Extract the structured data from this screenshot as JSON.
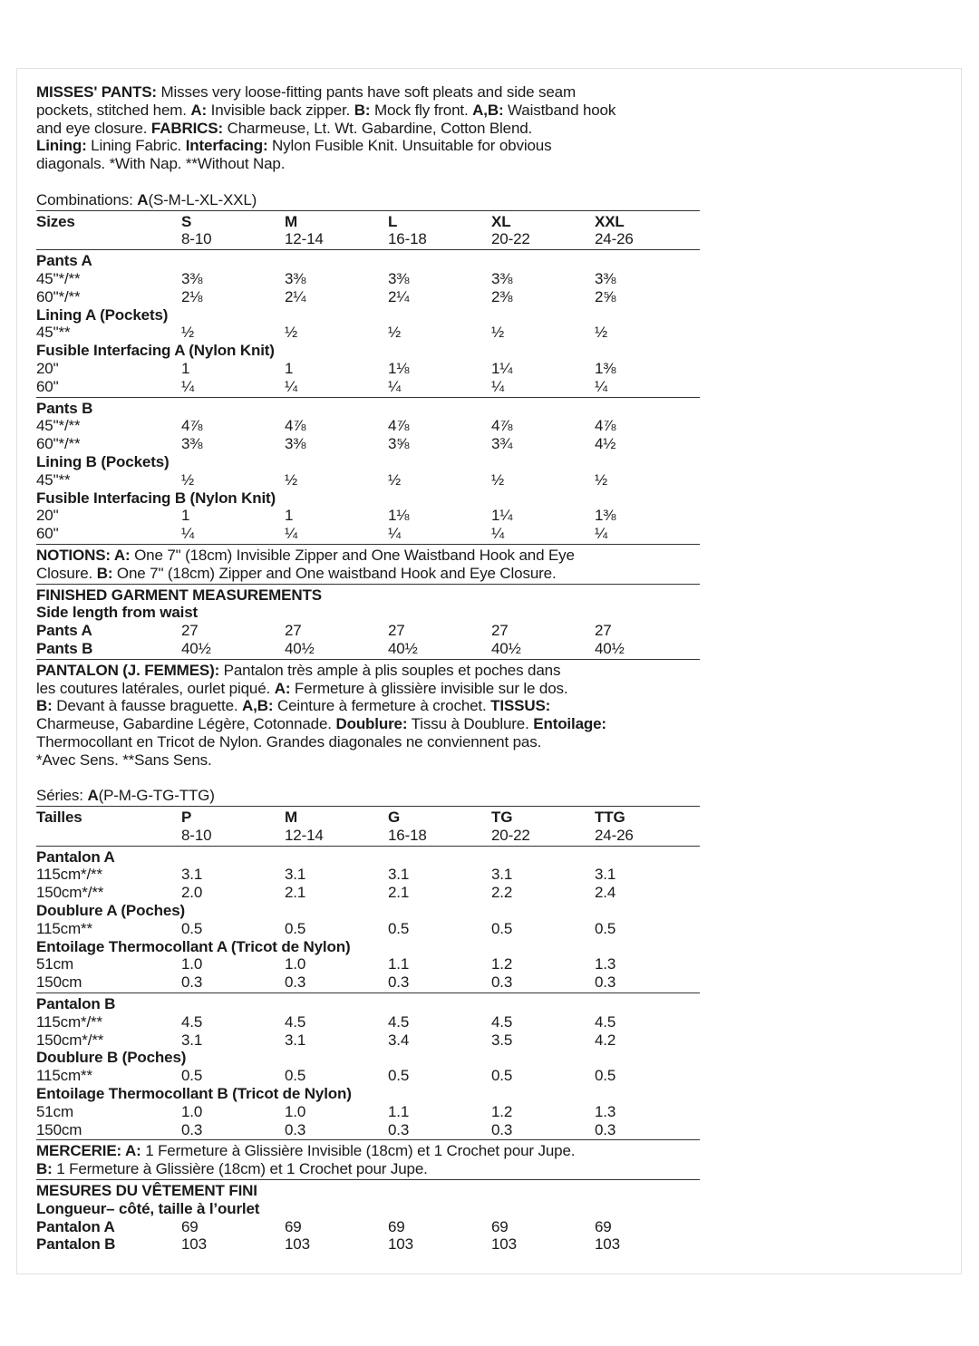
{
  "columns_en": [
    "S",
    "M",
    "L",
    "XL",
    "XXL"
  ],
  "blocks": [
    {
      "t": "para",
      "lines": [
        [
          [
            "MISSES' PANTS:",
            1
          ],
          [
            " Misses very loose-fitting pants have soft pleats and side seam",
            0
          ]
        ],
        [
          [
            "pockets, stitched hem. ",
            0
          ],
          [
            "A:",
            1
          ],
          [
            " Invisible back zipper. ",
            0
          ],
          [
            "B:",
            1
          ],
          [
            " Mock fly front. ",
            0
          ],
          [
            "A,B:",
            1
          ],
          [
            " Waistband hook",
            0
          ]
        ],
        [
          [
            "and eye closure. ",
            0
          ],
          [
            "FABRICS:",
            1
          ],
          [
            " Charmeuse, Lt. Wt. Gabardine, Cotton Blend.",
            0
          ]
        ],
        [
          [
            "Lining:",
            1
          ],
          [
            " Lining Fabric. ",
            0
          ],
          [
            "Interfacing:",
            1
          ],
          [
            " Nylon Fusible Knit. Unsuitable for obvious",
            0
          ]
        ],
        [
          [
            "diagonals. *With Nap. **Without Nap.",
            0
          ]
        ]
      ]
    },
    {
      "t": "blank"
    },
    {
      "t": "para",
      "lines": [
        [
          [
            "Combinations: ",
            0
          ],
          [
            "A",
            1
          ],
          [
            "(S-M-L-XL-XXL)",
            0
          ]
        ]
      ]
    },
    {
      "t": "rule"
    },
    {
      "t": "row",
      "bold": true,
      "label": "Sizes",
      "values": [
        "S",
        "M",
        "L",
        "XL",
        "XXL"
      ]
    },
    {
      "t": "row",
      "label": "",
      "values": [
        "8-10",
        "12-14",
        "16-18",
        "20-22",
        "24-26"
      ]
    },
    {
      "t": "rule"
    },
    {
      "t": "row",
      "bold": true,
      "label": "Pants A",
      "values": []
    },
    {
      "t": "row",
      "label": "45\"*/**",
      "values": [
        "3⅜",
        "3⅜",
        "3⅜",
        "3⅜",
        "3⅜"
      ]
    },
    {
      "t": "row",
      "label": "60\"*/**",
      "values": [
        "2⅛",
        "2¼",
        "2¼",
        "2⅜",
        "2⅝"
      ]
    },
    {
      "t": "row",
      "bold": true,
      "label": "Lining A (Pockets)",
      "values": []
    },
    {
      "t": "row",
      "label": "45\"**",
      "values": [
        "½",
        "½",
        "½",
        "½",
        "½"
      ]
    },
    {
      "t": "row",
      "bold": true,
      "label": "Fusible Interfacing A (Nylon Knit)",
      "values": []
    },
    {
      "t": "row",
      "label": "20\"",
      "values": [
        "1",
        "1",
        "1⅛",
        "1¼",
        "1⅜"
      ]
    },
    {
      "t": "row",
      "label": "60\"",
      "values": [
        "¼",
        "¼",
        "¼",
        "¼",
        "¼"
      ]
    },
    {
      "t": "rule"
    },
    {
      "t": "row",
      "bold": true,
      "label": "Pants B",
      "values": []
    },
    {
      "t": "row",
      "label": "45\"*/**",
      "values": [
        "4⅞",
        "4⅞",
        "4⅞",
        "4⅞",
        "4⅞"
      ]
    },
    {
      "t": "row",
      "label": "60\"*/**",
      "values": [
        "3⅜",
        "3⅜",
        "3⅝",
        "3¾",
        "4½"
      ]
    },
    {
      "t": "row",
      "bold": true,
      "label": "Lining B (Pockets)",
      "values": []
    },
    {
      "t": "row",
      "label": "45\"**",
      "values": [
        "½",
        "½",
        "½",
        "½",
        "½"
      ]
    },
    {
      "t": "row",
      "bold": true,
      "label": "Fusible Interfacing B (Nylon Knit)",
      "values": []
    },
    {
      "t": "row",
      "label": "20\"",
      "values": [
        "1",
        "1",
        "1⅛",
        "1¼",
        "1⅜"
      ]
    },
    {
      "t": "row",
      "label": "60\"",
      "values": [
        "¼",
        "¼",
        "¼",
        "¼",
        "¼"
      ]
    },
    {
      "t": "rule"
    },
    {
      "t": "para",
      "lines": [
        [
          [
            "NOTIONS: A:",
            1
          ],
          [
            " One 7\" (18cm) Invisible Zipper and One Waistband Hook and Eye",
            0
          ]
        ],
        [
          [
            "Closure. ",
            0
          ],
          [
            "B:",
            1
          ],
          [
            " One 7\" (18cm) Zipper and One waistband Hook and Eye Closure.",
            0
          ]
        ]
      ]
    },
    {
      "t": "rule"
    },
    {
      "t": "para",
      "lines": [
        [
          [
            "FINISHED GARMENT MEASUREMENTS",
            1
          ]
        ],
        [
          [
            "Side length from waist",
            1
          ]
        ]
      ]
    },
    {
      "t": "row",
      "bold": true,
      "label": "Pants A",
      "plainvals": true,
      "values": [
        "27",
        "27",
        "27",
        "27",
        "27"
      ]
    },
    {
      "t": "row",
      "bold": true,
      "label": "Pants B",
      "plainvals": true,
      "values": [
        "40½",
        "40½",
        "40½",
        "40½",
        "40½"
      ]
    },
    {
      "t": "rule"
    },
    {
      "t": "para",
      "lines": [
        [
          [
            "PANTALON (J. FEMMES):",
            1
          ],
          [
            " Pantalon très ample à plis souples et poches dans",
            0
          ]
        ],
        [
          [
            "les coutures latérales, ourlet piqué. ",
            0
          ],
          [
            "A:",
            1
          ],
          [
            " Fermeture à glissière invisible sur le dos.",
            0
          ]
        ],
        [
          [
            "B:",
            1
          ],
          [
            " Devant à fausse braguette. ",
            0
          ],
          [
            "A,B:",
            1
          ],
          [
            " Ceinture à fermeture à crochet. ",
            0
          ],
          [
            "TISSUS:",
            1
          ]
        ],
        [
          [
            "Charmeuse, Gabardine Légère, Cotonnade. ",
            0
          ],
          [
            "Doublure:",
            1
          ],
          [
            " Tissu à Doublure. ",
            0
          ],
          [
            "Entoilage:",
            1
          ]
        ],
        [
          [
            "Thermocollant en Tricot de Nylon. Grandes diagonales ne conviennent pas.",
            0
          ]
        ],
        [
          [
            "*Avec Sens. **Sans Sens.",
            0
          ]
        ]
      ]
    },
    {
      "t": "blank"
    },
    {
      "t": "para",
      "lines": [
        [
          [
            "Séries: ",
            0
          ],
          [
            "A",
            1
          ],
          [
            "(P-M-G-TG-TTG)",
            0
          ]
        ]
      ]
    },
    {
      "t": "rule"
    },
    {
      "t": "row",
      "bold": true,
      "label": "Tailles",
      "values": [
        "P",
        "M",
        "G",
        "TG",
        "TTG"
      ]
    },
    {
      "t": "row",
      "label": "",
      "values": [
        "8-10",
        "12-14",
        "16-18",
        "20-22",
        "24-26"
      ]
    },
    {
      "t": "rule"
    },
    {
      "t": "row",
      "bold": true,
      "label": "Pantalon A",
      "values": []
    },
    {
      "t": "row",
      "label": "115cm*/**",
      "values": [
        "3.1",
        "3.1",
        "3.1",
        "3.1",
        "3.1"
      ]
    },
    {
      "t": "row",
      "label": "150cm*/**",
      "values": [
        "2.0",
        "2.1",
        "2.1",
        "2.2",
        "2.4"
      ]
    },
    {
      "t": "row",
      "bold": true,
      "label": "Doublure A (Poches)",
      "values": []
    },
    {
      "t": "row",
      "label": "115cm**",
      "values": [
        "0.5",
        "0.5",
        "0.5",
        "0.5",
        "0.5"
      ]
    },
    {
      "t": "row",
      "bold": true,
      "label": "Entoilage Thermocollant A (Tricot de Nylon)",
      "values": []
    },
    {
      "t": "row",
      "label": "51cm",
      "values": [
        "1.0",
        "1.0",
        "1.1",
        "1.2",
        "1.3"
      ]
    },
    {
      "t": "row",
      "label": "150cm",
      "values": [
        "0.3",
        "0.3",
        "0.3",
        "0.3",
        "0.3"
      ]
    },
    {
      "t": "rule"
    },
    {
      "t": "row",
      "bold": true,
      "label": "Pantalon B",
      "values": []
    },
    {
      "t": "row",
      "label": "115cm*/**",
      "values": [
        "4.5",
        "4.5",
        "4.5",
        "4.5",
        "4.5"
      ]
    },
    {
      "t": "row",
      "label": "150cm*/**",
      "values": [
        "3.1",
        "3.1",
        "3.4",
        "3.5",
        "4.2"
      ]
    },
    {
      "t": "row",
      "bold": true,
      "label": "Doublure B (Poches)",
      "values": []
    },
    {
      "t": "row",
      "label": "115cm**",
      "values": [
        "0.5",
        "0.5",
        "0.5",
        "0.5",
        "0.5"
      ]
    },
    {
      "t": "row",
      "bold": true,
      "label": "Entoilage Thermocollant B (Tricot de Nylon)",
      "values": []
    },
    {
      "t": "row",
      "label": "51cm",
      "values": [
        "1.0",
        "1.0",
        "1.1",
        "1.2",
        "1.3"
      ]
    },
    {
      "t": "row",
      "label": "150cm",
      "values": [
        "0.3",
        "0.3",
        "0.3",
        "0.3",
        "0.3"
      ]
    },
    {
      "t": "rule"
    },
    {
      "t": "para",
      "lines": [
        [
          [
            "MERCERIE: A:",
            1
          ],
          [
            " 1 Fermeture à Glissière Invisible (18cm) et 1 Crochet pour Jupe.",
            0
          ]
        ],
        [
          [
            "B:",
            1
          ],
          [
            " 1 Fermeture à Glissière (18cm) et 1 Crochet pour Jupe.",
            0
          ]
        ]
      ]
    },
    {
      "t": "rule"
    },
    {
      "t": "para",
      "lines": [
        [
          [
            "MESURES DU VÊTEMENT FINI",
            1
          ]
        ],
        [
          [
            "Longueur– côté, taille à l’ourlet",
            1
          ]
        ]
      ]
    },
    {
      "t": "row",
      "bold": true,
      "label": "Pantalon A",
      "plainvals": true,
      "values": [
        "69",
        "69",
        "69",
        "69",
        "69"
      ]
    },
    {
      "t": "row",
      "bold": true,
      "label": "Pantalon B",
      "plainvals": true,
      "values": [
        "103",
        "103",
        "103",
        "103",
        "103"
      ]
    }
  ]
}
